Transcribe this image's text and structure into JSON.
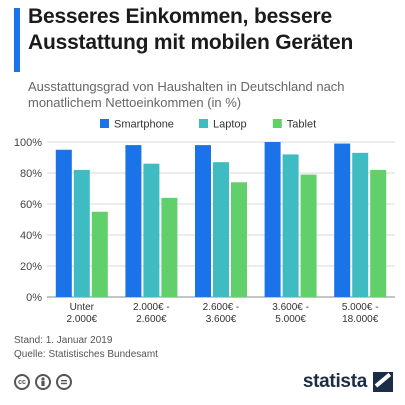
{
  "header": {
    "title": "Besseres Einkommen, bessere Ausstattung mit mobilen Geräten",
    "subtitle": "Ausstattungsgrad von Haushalten in Deutschland nach monatlichem Nettoeinkommen (in %)"
  },
  "chart_data": {
    "type": "bar",
    "title": "Besseres Einkommen, bessere Ausstattung mit mobilen Geräten",
    "subtitle": "Ausstattungsgrad von Haushalten in Deutschland nach monatlichem Nettoeinkommen (in %)",
    "categories": [
      [
        "Unter",
        "2.000€"
      ],
      [
        "2.000€ -",
        "2.600€"
      ],
      [
        "2.600€ -",
        "3.600€"
      ],
      [
        "3.600€ -",
        "5.000€"
      ],
      [
        "5.000€ -",
        "18.000€"
      ]
    ],
    "series": [
      {
        "name": "Smartphone",
        "color": "#1a73e8",
        "values": [
          95,
          98,
          98,
          100,
          99
        ]
      },
      {
        "name": "Laptop",
        "color": "#3fbcc1",
        "values": [
          82,
          86,
          87,
          92,
          93
        ]
      },
      {
        "name": "Tablet",
        "color": "#61d06a",
        "values": [
          55,
          64,
          74,
          79,
          82
        ]
      }
    ],
    "yticks": [
      "0%",
      "20%",
      "40%",
      "60%",
      "80%",
      "100%"
    ],
    "ylim": [
      0,
      100
    ],
    "grid": true,
    "legend": "top-right"
  },
  "footer": {
    "stand": "Stand: 1. Januar 2019",
    "quelle": "Quelle: Statistisches Bundesamt",
    "brand": "statista",
    "license_icons": [
      "cc-icon",
      "person-icon",
      "equal-icon"
    ]
  }
}
